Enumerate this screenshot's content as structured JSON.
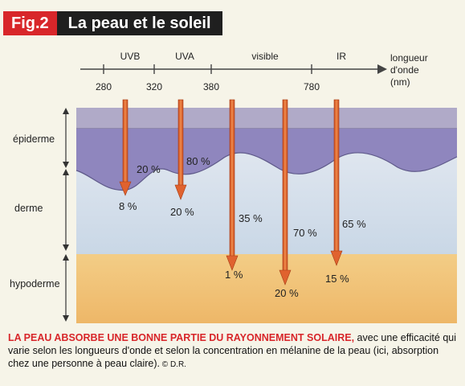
{
  "figure": {
    "number_label": "Fig.2",
    "title": "La peau et le soleil"
  },
  "axis": {
    "bands": [
      "UVB",
      "UVA",
      "visible",
      "IR"
    ],
    "ticks": [
      "280",
      "320",
      "380",
      "780"
    ],
    "unit_line1": "longueur",
    "unit_line2": "d'onde",
    "unit_line3": "(nm)"
  },
  "layers": {
    "epidermis": "épiderme",
    "dermis": "derme",
    "hypodermis": "hypoderme"
  },
  "percentages": {
    "uvb_epidermis": "20 %",
    "uvb_dermis": "8 %",
    "uva_epidermis": "80 %",
    "uva_dermis": "20 %",
    "visible1_dermis": "35 %",
    "visible1_hypodermis": "1 %",
    "visible2_dermis": "70 %",
    "visible2_hypodermis": "20 %",
    "ir_dermis": "65 %",
    "ir_hypodermis": "15 %"
  },
  "caption": {
    "lead": "LA PEAU ABSORBE UNE BONNE PARTIE DU RAYONNEMENT SOLAIRE,",
    "body": " avec une efficacité qui varie selon les longueurs d'onde et selon la concentration en mélanine de la peau (ici, absorption chez une personne à peau claire).",
    "credit": " © D.R."
  },
  "colors": {
    "accent": "#d8262a",
    "epidermis": "#8f86be",
    "dermis": "#d7e2ee",
    "hypodermis": "#f2c27a",
    "arrow": "#e0622f"
  }
}
